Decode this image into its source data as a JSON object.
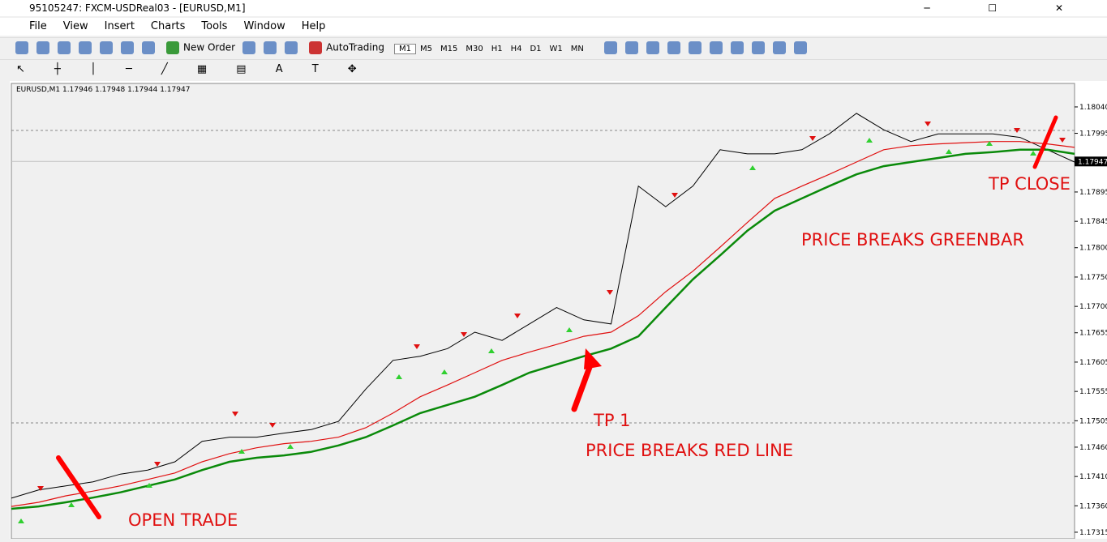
{
  "window": {
    "title": "95105247: FXCM-USDReal03 - [EURUSD,M1]"
  },
  "menu": [
    "File",
    "View",
    "Insert",
    "Charts",
    "Tools",
    "Window",
    "Help"
  ],
  "toolbar": {
    "new_order": "New Order",
    "autotrading": "AutoTrading",
    "timeframes": [
      "M1",
      "M5",
      "M15",
      "M30",
      "H1",
      "H4",
      "D1",
      "W1",
      "MN"
    ]
  },
  "chart": {
    "type": "line",
    "info": "EURUSD,M1  1.17946 1.17948 1.17944 1.17947",
    "ylim": [
      1.17308,
      1.1808
    ],
    "yticks": [
      {
        "value": 1.1804,
        "label": "1.18040"
      },
      1.17995,
      1.17895,
      1.17845,
      {
        "value": 1.178,
        "label": "1.17800"
      },
      {
        "value": 1.1775,
        "label": "1.17750"
      },
      {
        "value": 1.177,
        "label": "1.17700"
      },
      1.17655,
      1.17605,
      1.17555,
      1.17505,
      {
        "value": 1.1746,
        "label": "1.17460"
      },
      {
        "value": 1.1741,
        "label": "1.17410"
      },
      {
        "value": 1.1736,
        "label": "1.17360"
      },
      1.17315
    ],
    "current_price": 1.17947,
    "series": [
      {
        "color": "#000000",
        "values": [
          1.17373,
          1.17387,
          1.17394,
          1.17401,
          1.17414,
          1.17421,
          1.17435,
          1.1747,
          1.17477,
          1.17477,
          1.17484,
          1.1749,
          1.17504,
          1.17559,
          1.17608,
          1.17615,
          1.17628,
          1.17656,
          1.17642,
          1.1767,
          1.17698,
          1.17677,
          1.1767,
          1.17905,
          1.1787,
          1.17905,
          1.17967,
          1.1796,
          1.1796,
          1.17967,
          1.17994,
          1.18029,
          1.18001,
          1.17981,
          1.17994,
          1.17994,
          1.17994,
          1.17988,
          1.17967,
          1.17946
        ]
      },
      {
        "color": "#e01010",
        "values": [
          1.17359,
          1.17366,
          1.17377,
          1.17385,
          1.17394,
          1.17405,
          1.17416,
          1.17435,
          1.17449,
          1.17459,
          1.17466,
          1.1747,
          1.17477,
          1.17493,
          1.17518,
          1.17546,
          1.17566,
          1.17587,
          1.17608,
          1.17622,
          1.17635,
          1.17649,
          1.17656,
          1.17684,
          1.17725,
          1.1776,
          1.17801,
          1.17843,
          1.17884,
          1.17905,
          1.17925,
          1.17946,
          1.17967,
          1.17974,
          1.17977,
          1.17979,
          1.17981,
          1.17981,
          1.17977,
          1.17971
        ]
      },
      {
        "color": "#0a8a0a",
        "values": [
          1.17355,
          1.17359,
          1.17366,
          1.17374,
          1.17383,
          1.17394,
          1.17405,
          1.17421,
          1.17435,
          1.17442,
          1.17446,
          1.17452,
          1.17463,
          1.17477,
          1.17497,
          1.17518,
          1.17532,
          1.17546,
          1.17566,
          1.17587,
          1.17601,
          1.17615,
          1.17628,
          1.17649,
          1.17698,
          1.17746,
          1.17787,
          1.17829,
          1.17863,
          1.17884,
          1.17905,
          1.17925,
          1.17939,
          1.17946,
          1.17953,
          1.1796,
          1.17963,
          1.17967,
          1.17967,
          1.1796
        ]
      }
    ],
    "annotations": [
      "OPEN TRADE",
      "TP 1",
      "PRICE BREAKS RED LINE",
      "PRICE BREAKS GREENBAR",
      "TP CLOSE"
    ]
  }
}
